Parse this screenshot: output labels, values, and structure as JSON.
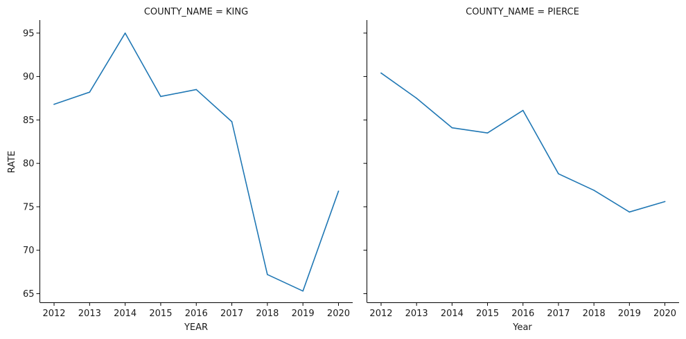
{
  "chart_data": {
    "type": "line",
    "y_ticks": [
      "65",
      "70",
      "75",
      "80",
      "85",
      "90",
      "95"
    ],
    "ylim": [
      64,
      96.5
    ],
    "xlim": [
      2011.6,
      2020.4
    ],
    "line_color": "#1f77b4",
    "grid": false,
    "panels": [
      {
        "title": "COUNTY_NAME = KING",
        "xlabel": "YEAR",
        "ylabel": "RATE",
        "x": [
          2012,
          2013,
          2014,
          2015,
          2016,
          2017,
          2018,
          2019,
          2020
        ],
        "x_ticks": [
          "2012",
          "2013",
          "2014",
          "2015",
          "2016",
          "2017",
          "2018",
          "2019",
          "2020"
        ],
        "values": [
          86.8,
          88.2,
          95.0,
          87.7,
          88.5,
          84.8,
          67.2,
          65.3,
          76.8
        ]
      },
      {
        "title": "COUNTY_NAME = PIERCE",
        "xlabel": "Year",
        "ylabel": "",
        "x": [
          2012,
          2013,
          2014,
          2015,
          2016,
          2017,
          2018,
          2019,
          2020
        ],
        "x_ticks": [
          "2012",
          "2013",
          "2014",
          "2015",
          "2016",
          "2017",
          "2018",
          "2019",
          "2020"
        ],
        "values": [
          90.4,
          87.5,
          84.1,
          83.5,
          86.1,
          78.8,
          76.9,
          74.4,
          75.6
        ]
      }
    ]
  }
}
